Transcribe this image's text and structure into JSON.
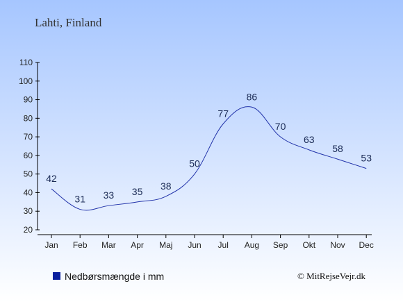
{
  "title": "Lahti, Finland",
  "legend_label": "Nedbørsmængde i mm",
  "copyright": "© MitRejseVejr.dk",
  "colors": {
    "line": "#2233aa",
    "legend_marker": "#0a1f9e",
    "bg_top": "#a6c6ff",
    "bg_bottom": "#ffffff"
  },
  "chart_data": {
    "type": "line",
    "categories": [
      "Jan",
      "Feb",
      "Mar",
      "Apr",
      "Maj",
      "Jun",
      "Jul",
      "Aug",
      "Sep",
      "Okt",
      "Nov",
      "Dec"
    ],
    "values": [
      42,
      31,
      33,
      35,
      38,
      50,
      77,
      86,
      70,
      63,
      58,
      53
    ],
    "yticks": [
      20,
      30,
      40,
      50,
      60,
      70,
      80,
      90,
      100,
      110
    ],
    "ylim": [
      20,
      110
    ],
    "title": "Lahti, Finland",
    "xlabel": "",
    "ylabel": "",
    "grid": false,
    "legend": "bottom-left"
  }
}
